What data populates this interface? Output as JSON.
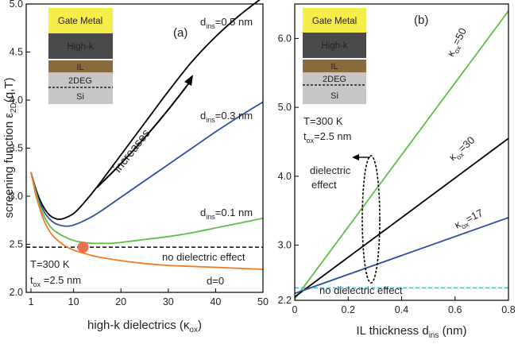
{
  "chart_data": [
    {
      "panel_label": "(a)",
      "type": "line",
      "xlabel": "high-k dielectrics (κ",
      "xlabel_sub": "ox",
      "xlabel_tail": ")",
      "ylabel": "screening function ε",
      "ylabel_sub": "2D",
      "ylabel_tail": "(q,T)",
      "xlim": [
        0,
        50
      ],
      "ylim": [
        2.0,
        5.0
      ],
      "xticks": [
        1,
        10,
        20,
        30,
        40,
        50
      ],
      "xtick_labels": [
        "1",
        "10",
        "20",
        "30",
        "40",
        "50"
      ],
      "yticks": [
        2.0,
        2.5,
        3.0,
        3.5,
        4.0,
        4.5,
        5.0
      ],
      "ytick_labels": [
        "2.0",
        "2.5",
        "3.0",
        "3.5",
        "4.0",
        "4.5",
        "5.0"
      ],
      "series": [
        {
          "key": "d05",
          "color": "#000000",
          "x": [
            1,
            2,
            3,
            4,
            5,
            6,
            7,
            8,
            10,
            12,
            15,
            20,
            25,
            30,
            35,
            40,
            45,
            50
          ],
          "y": [
            3.25,
            3.08,
            2.95,
            2.86,
            2.8,
            2.77,
            2.76,
            2.77,
            2.82,
            2.92,
            3.1,
            3.43,
            3.76,
            4.09,
            4.4,
            4.66,
            4.88,
            5.07
          ]
        },
        {
          "key": "d03",
          "color": "#2e4f9c",
          "x": [
            1,
            2,
            3,
            4,
            5,
            6,
            7,
            8,
            9,
            10,
            12,
            15,
            20,
            25,
            30,
            35,
            40,
            45,
            50
          ],
          "y": [
            3.25,
            3.06,
            2.92,
            2.82,
            2.76,
            2.72,
            2.7,
            2.69,
            2.69,
            2.7,
            2.74,
            2.82,
            2.99,
            3.16,
            3.33,
            3.5,
            3.67,
            3.83,
            3.98
          ]
        },
        {
          "key": "d01",
          "color": "#5cbf47",
          "x": [
            1,
            2,
            3,
            4,
            5,
            6,
            8,
            10,
            12,
            14,
            16,
            18,
            20,
            25,
            30,
            35,
            40,
            45,
            50
          ],
          "y": [
            3.25,
            3.05,
            2.88,
            2.77,
            2.69,
            2.64,
            2.58,
            2.54,
            2.52,
            2.51,
            2.51,
            2.51,
            2.52,
            2.55,
            2.58,
            2.62,
            2.67,
            2.72,
            2.77
          ]
        },
        {
          "key": "d0",
          "color": "#f47c20",
          "x": [
            1,
            2,
            3,
            4,
            5,
            6,
            8,
            10,
            12,
            15,
            20,
            25,
            30,
            35,
            40,
            45,
            50
          ],
          "y": [
            3.25,
            3.02,
            2.85,
            2.72,
            2.63,
            2.57,
            2.49,
            2.44,
            2.41,
            2.37,
            2.33,
            2.3,
            2.28,
            2.27,
            2.26,
            2.25,
            2.24
          ]
        }
      ],
      "reference_line": {
        "y": 2.47,
        "label": "no dielectric effect",
        "style": "dashed",
        "color": "#000000"
      },
      "marker": {
        "x": 12,
        "y": 2.47,
        "color": "#e8704e"
      },
      "annotations": {
        "d05": {
          "prefix": "d",
          "sub": "ins",
          "suffix": "=0.5 nm"
        },
        "d03": {
          "prefix": "d",
          "sub": "ins",
          "suffix": "=0.3 nm"
        },
        "d01": {
          "prefix": "d",
          "sub": "ins",
          "suffix": "=0.1 nm"
        },
        "d0": {
          "text": "d=0"
        },
        "arrow_label": "increases",
        "temp": "T=300 K",
        "tox": {
          "prefix": "t",
          "sub": "ox",
          "suffix": " =2.5 nm"
        }
      },
      "inset_layers": [
        "Gate Metal",
        "High-k",
        "IL",
        "2DEG",
        "Si"
      ]
    },
    {
      "panel_label": "(b)",
      "type": "line",
      "xlabel": "IL thickness d",
      "xlabel_sub": "ins",
      "xlabel_tail": " (nm)",
      "xlim": [
        0,
        0.8
      ],
      "ylim": [
        2.2,
        6.5
      ],
      "xticks": [
        0,
        0.2,
        0.4,
        0.6,
        0.8
      ],
      "xtick_labels": [
        "0",
        "0.2",
        "0.4",
        "0.6",
        "0.8"
      ],
      "yticks": [
        2.2,
        3.0,
        4.0,
        5.0,
        6.0
      ],
      "ytick_labels": [
        "2.2",
        "3.0",
        "4.0",
        "5.0",
        "6.0"
      ],
      "series": [
        {
          "key": "k50",
          "color": "#5cbf47",
          "x": [
            0,
            0.8
          ],
          "y": [
            2.22,
            6.4
          ]
        },
        {
          "key": "k30",
          "color": "#000000",
          "x": [
            0,
            0.8
          ],
          "y": [
            2.25,
            4.55
          ]
        },
        {
          "key": "k17",
          "color": "#2e4f9c",
          "x": [
            0,
            0.8
          ],
          "y": [
            2.3,
            3.4
          ]
        }
      ],
      "reference_line": {
        "y": 2.38,
        "label": "no dielectric effect",
        "style": "dashed",
        "color": "#41b6d3"
      },
      "annotations": {
        "k50": {
          "prefix": "κ",
          "sub": "ox",
          "suffix": "=50"
        },
        "k30": {
          "prefix": "κ",
          "sub": "ox",
          "suffix": "=30"
        },
        "k17": {
          "prefix": "κ",
          "sub": "ox",
          "suffix": "=17"
        },
        "effect_line1": "dielectric",
        "effect_line2": "effect",
        "temp": "T=300 K",
        "tox": {
          "prefix": "t",
          "sub": "ox",
          "suffix": "=2.5 nm"
        }
      },
      "inset_layers": [
        "Gate Metal",
        "High-k",
        "IL",
        "2DEG",
        "Si"
      ]
    }
  ],
  "colors": {
    "gate_metal": "#f5ee4a",
    "high_k": "#4a4a4a",
    "il": "#8a6a3c",
    "si": "#c8c5c6"
  }
}
